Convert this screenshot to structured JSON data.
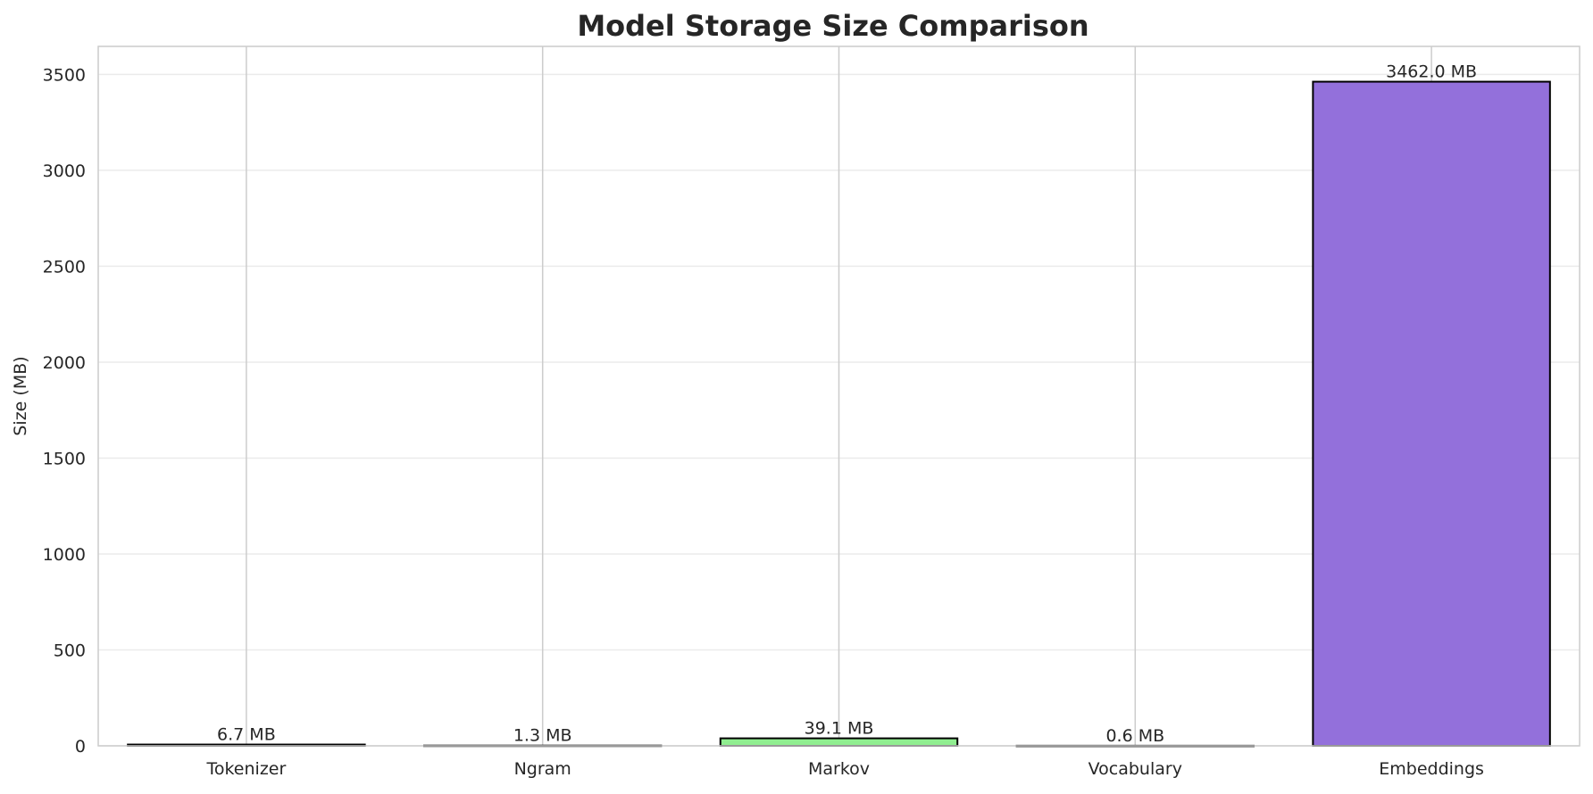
{
  "chart_data": {
    "type": "bar",
    "title": "Model Storage Size Comparison",
    "xlabel": "",
    "ylabel": "Size (MB)",
    "categories": [
      "Tokenizer",
      "Ngram",
      "Markov",
      "Vocabulary",
      "Embeddings"
    ],
    "values": [
      6.7,
      1.3,
      39.1,
      0.6,
      3462.0
    ],
    "data_labels": [
      "6.7 MB",
      "1.3 MB",
      "39.1 MB",
      "0.6 MB",
      "3462.0 MB"
    ],
    "colors": [
      "#87ceeb",
      "#f08080",
      "#90ee90",
      "#ffd700",
      "#9370db"
    ],
    "edge_color": "#000000",
    "ylim": [
      0,
      3646
    ],
    "yticks": [
      0,
      500,
      1000,
      1500,
      2000,
      2500,
      3000,
      3500
    ],
    "grid": true,
    "legend": "none"
  }
}
